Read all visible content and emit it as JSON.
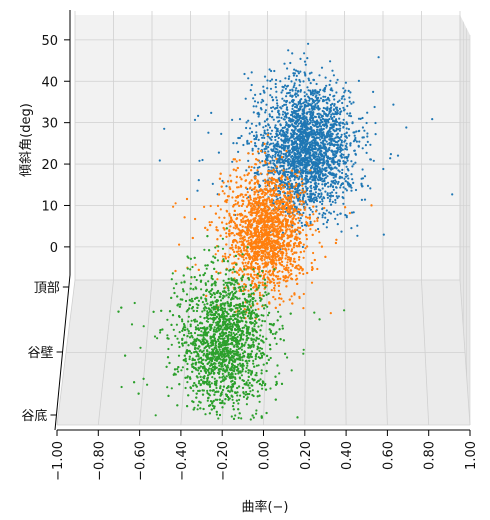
{
  "chart_data": {
    "type": "scatter",
    "projection": "3d",
    "xlabel": "曲率(−)",
    "zlabel": "傾斜角(deg)",
    "ylabel": "",
    "x_ticks": [
      "−1.00",
      "−0.80",
      "−0.60",
      "−0.40",
      "−0.20",
      "0.00",
      "0.20",
      "0.40",
      "0.60",
      "0.80",
      "1.00"
    ],
    "z_ticks": [
      "0",
      "10",
      "20",
      "30",
      "40",
      "50"
    ],
    "y_categories": [
      "頂部",
      "谷壁",
      "谷底"
    ],
    "xlim": [
      -1.0,
      1.0
    ],
    "zlim": [
      -8,
      56
    ],
    "grid": true,
    "series": [
      {
        "color": "#1f77b4",
        "category": "頂部",
        "x_center": 0.2,
        "x_spread": 0.22,
        "z_center": 30,
        "z_spread": 13,
        "z_range": [
          5,
          53
        ],
        "depth_range": [
          0.0,
          0.35
        ]
      },
      {
        "color": "#ff7f0e",
        "category": "谷壁",
        "x_center": 0.0,
        "x_spread": 0.18,
        "z_center": 20,
        "z_spread": 12,
        "z_range": [
          0,
          45
        ],
        "depth_range": [
          0.3,
          0.65
        ]
      },
      {
        "color": "#2ca02c",
        "category": "谷底",
        "x_center": -0.2,
        "x_spread": 0.2,
        "z_center": 5,
        "z_spread": 14,
        "z_range": [
          -12,
          30
        ],
        "depth_range": [
          0.6,
          1.0
        ]
      }
    ]
  }
}
